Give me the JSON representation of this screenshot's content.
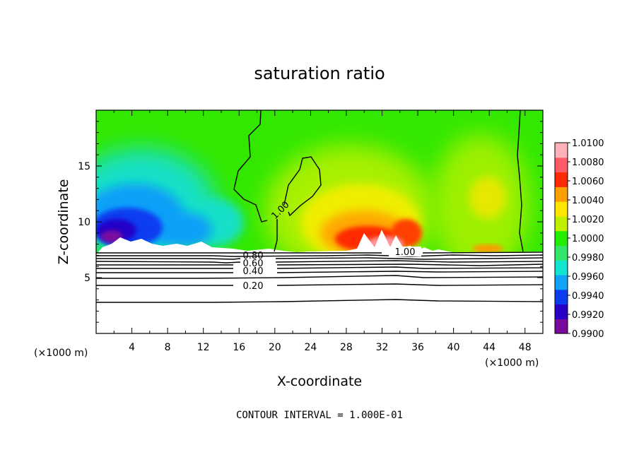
{
  "chart_data": {
    "type": "heatmap",
    "title": "saturation ratio",
    "xlabel": "X-coordinate",
    "ylabel": "Z-coordinate",
    "x_unit": "(×1000 m)",
    "y_unit": "(×1000 m)",
    "xlim": [
      0,
      50
    ],
    "ylim": [
      0,
      20
    ],
    "x_ticks": [
      "4",
      "8",
      "12",
      "16",
      "20",
      "24",
      "28",
      "32",
      "36",
      "40",
      "44",
      "48"
    ],
    "y_ticks": [
      "5",
      "10",
      "15"
    ],
    "colorbar_labels": [
      "0.9900",
      "0.9920",
      "0.9940",
      "0.9960",
      "0.9980",
      "1.0000",
      "1.0020",
      "1.0040",
      "1.0060",
      "1.0080",
      "1.0100"
    ],
    "colorbar_colors": [
      "#7a0a9e",
      "#2a00c8",
      "#0a3cf0",
      "#10a4f8",
      "#12e4d2",
      "#33e66a",
      "#22ee00",
      "#c0f000",
      "#ffe600",
      "#ffa000",
      "#ff2a00",
      "#ff5a66",
      "#ffb0b8"
    ],
    "contour_labels": [
      "1.00",
      "1.00",
      "0.80",
      "0.60",
      "0.40",
      "0.20"
    ],
    "contour_interval_note": "CONTOUR INTERVAL = 1.000E-01"
  }
}
